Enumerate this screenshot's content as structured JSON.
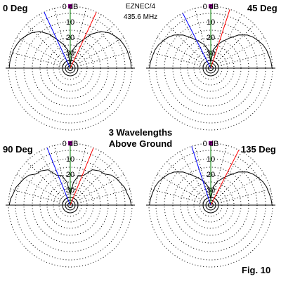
{
  "header": {
    "program": "EZNEC/4",
    "frequency": "435.6 MHz"
  },
  "caption": {
    "line1": "3 Wavelengths",
    "line2": "Above Ground"
  },
  "figure_label": "Fig. 10",
  "colors": {
    "pattern": "#000000",
    "grid": "#000000",
    "main_axis": "#008000",
    "beam_left": "#ff0000",
    "beam_right": "#0000ff",
    "marker": "#800080"
  },
  "chart_data": [
    {
      "type": "polar",
      "subtype": "elevation",
      "title": "0 Deg",
      "r_ticks": [
        "0 dB",
        "10",
        "20",
        "30"
      ],
      "r_tick_db": [
        0,
        10,
        20,
        30
      ],
      "r_max_db": 40,
      "pattern": {
        "theta_deg": [
          0,
          6,
          12,
          18,
          24,
          30,
          36,
          42,
          50,
          58,
          66,
          74,
          82,
          90,
          98,
          106,
          114,
          122,
          130,
          138,
          144,
          150,
          156,
          162,
          168,
          174,
          180
        ],
        "r_db": [
          0.5,
          0.7,
          1.2,
          1.5,
          2.2,
          3.0,
          4.5,
          6.0,
          9.0,
          14.0,
          20.0,
          24.0,
          28.0,
          38.0,
          28.0,
          24.0,
          20.0,
          14.0,
          9.0,
          6.0,
          4.5,
          3.0,
          2.2,
          1.5,
          1.2,
          0.7,
          0.5
        ]
      },
      "beam_lines_deg": [
        -25,
        25
      ]
    },
    {
      "type": "polar",
      "subtype": "elevation",
      "title": "45 Deg",
      "r_ticks": [
        "0 dB",
        "10",
        "20",
        "30"
      ],
      "r_tick_db": [
        0,
        10,
        20,
        30
      ],
      "r_max_db": 40,
      "pattern": {
        "theta_deg": [
          0,
          6,
          12,
          18,
          24,
          30,
          36,
          42,
          50,
          58,
          66,
          74,
          82,
          90,
          98,
          106,
          114,
          122,
          130,
          138,
          144,
          150,
          156,
          162,
          168,
          174,
          180
        ],
        "r_db": [
          0.3,
          0.8,
          1.5,
          2.0,
          3.0,
          4.5,
          6.0,
          8.0,
          12.0,
          17.0,
          21.0,
          24.0,
          28.0,
          36.0,
          28.0,
          24.0,
          21.0,
          17.0,
          12.0,
          8.0,
          6.0,
          4.5,
          3.0,
          2.0,
          1.5,
          0.8,
          0.3
        ]
      },
      "beam_lines_deg": [
        -27,
        18
      ]
    },
    {
      "type": "polar",
      "subtype": "elevation",
      "title": "90 Deg",
      "r_ticks": [
        "0 dB",
        "10",
        "20",
        "30"
      ],
      "r_tick_db": [
        0,
        10,
        20,
        30
      ],
      "r_max_db": 40,
      "pattern": {
        "theta_deg": [
          0,
          6,
          12,
          18,
          24,
          30,
          36,
          42,
          50,
          58,
          66,
          74,
          82,
          90,
          98,
          106,
          114,
          122,
          130,
          138,
          144,
          150,
          156,
          162,
          168,
          174,
          180
        ],
        "r_db": [
          0.5,
          1.2,
          2.5,
          3.0,
          4.5,
          5.5,
          7.0,
          10.0,
          11.0,
          13.0,
          19.0,
          20.0,
          25.0,
          33.0,
          25.0,
          20.0,
          19.0,
          13.0,
          11.0,
          10.0,
          7.0,
          5.5,
          4.5,
          3.0,
          2.5,
          1.2,
          0.5
        ]
      },
      "beam_lines_deg": [
        -22,
        22
      ]
    },
    {
      "type": "polar",
      "subtype": "elevation",
      "title": "135 Deg",
      "r_ticks": [
        "0 dB",
        "10",
        "20",
        "30"
      ],
      "r_tick_db": [
        0,
        10,
        20,
        30
      ],
      "r_max_db": 40,
      "pattern": {
        "theta_deg": [
          0,
          6,
          12,
          18,
          24,
          30,
          36,
          42,
          50,
          58,
          66,
          74,
          82,
          90,
          98,
          106,
          114,
          122,
          130,
          138,
          144,
          150,
          156,
          162,
          168,
          174,
          180
        ],
        "r_db": [
          0.3,
          0.8,
          1.5,
          2.0,
          3.0,
          4.5,
          6.0,
          8.0,
          12.0,
          17.0,
          21.0,
          24.0,
          28.0,
          36.0,
          28.0,
          24.0,
          21.0,
          17.0,
          12.0,
          8.0,
          6.0,
          4.5,
          3.0,
          2.0,
          1.5,
          0.8,
          0.3
        ]
      },
      "beam_lines_deg": [
        -18,
        27
      ]
    }
  ]
}
